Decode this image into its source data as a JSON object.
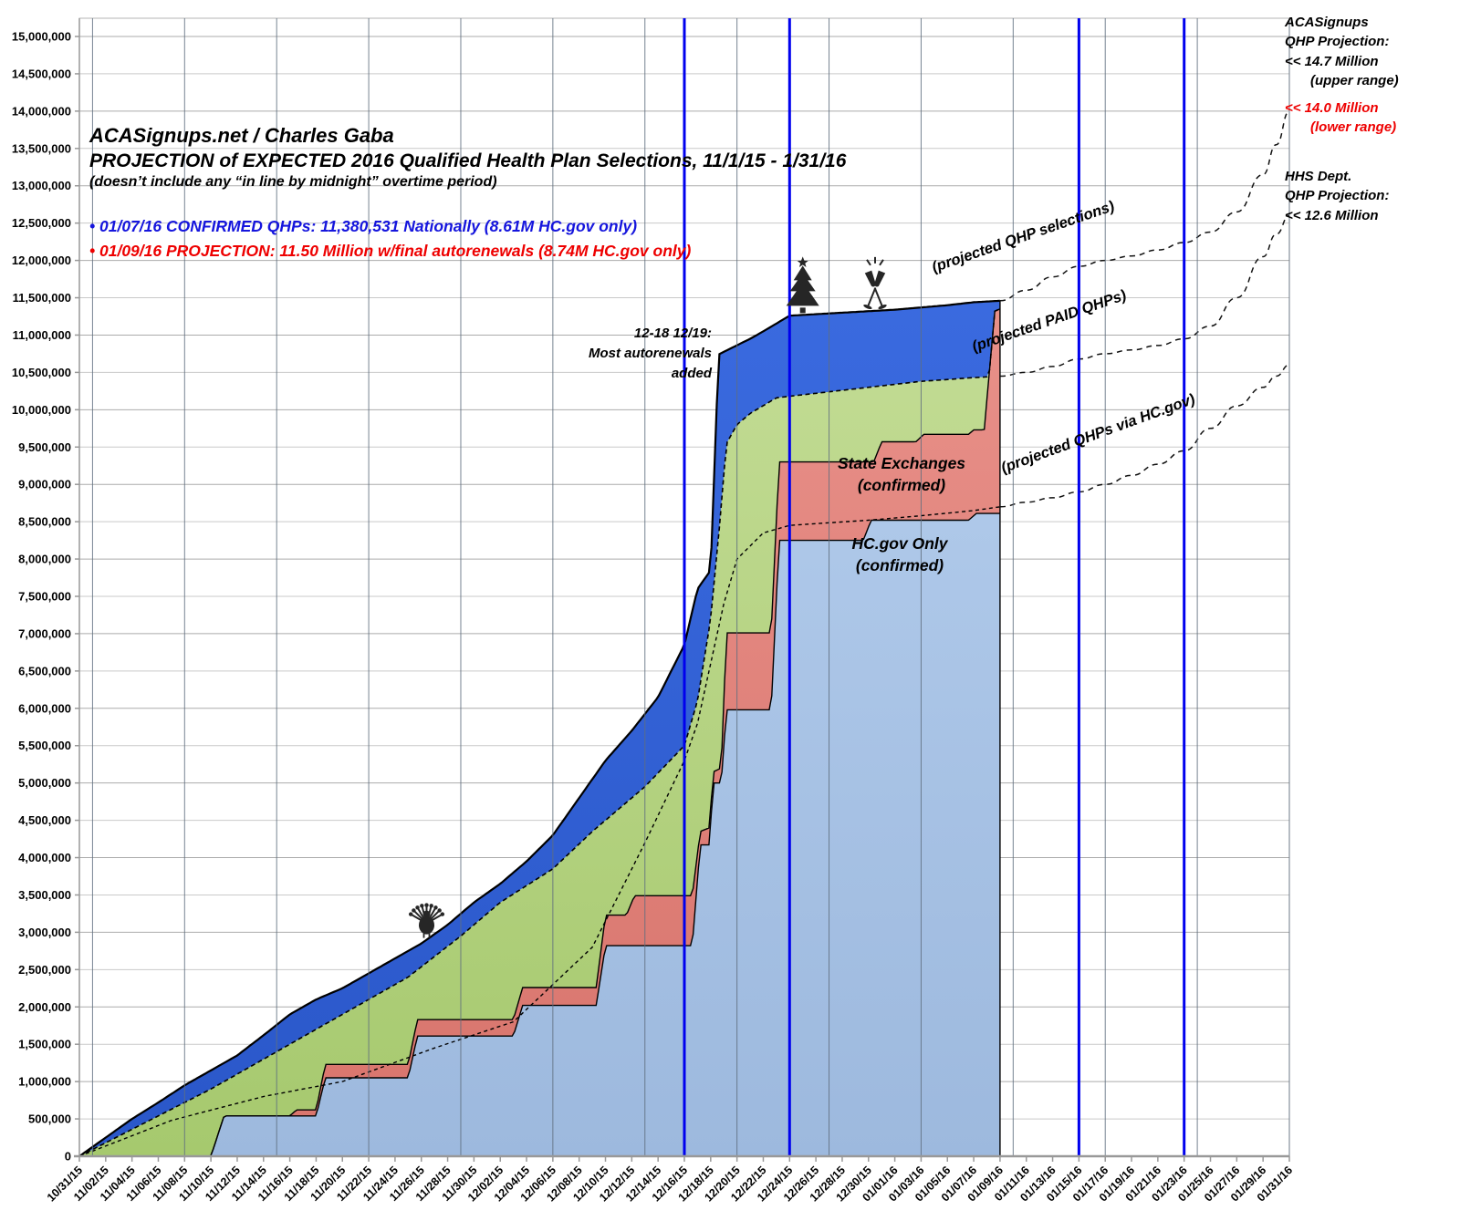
{
  "header": {
    "title_line1": "ACASignups.net / Charles Gaba",
    "title_line2": "PROJECTION of EXPECTED 2016 Qualified Health Plan Selections, 11/1/15 - 1/31/16",
    "title_line3": "(doesn’t include any “in line by midnight” overtime period)",
    "bullet_confirmed": "• 01/07/16 CONFIRMED QHPs: 11,380,531 Nationally (8.61M HC.gov only)",
    "bullet_projection": "• 01/09/16 PROJECTION: 11.50 Million w/final autorenewals (8.74M HC.gov only)"
  },
  "annotations": {
    "autorenewal_note_l1": "12-18 12/19:",
    "autorenewal_note_l2": "Most autorenewals",
    "autorenewal_note_l3": "added",
    "state_exchanges_l1": "State Exchanges",
    "state_exchanges_l2": "(confirmed)",
    "hcgov_only_l1": "HC.gov Only",
    "hcgov_only_l2": "(confirmed)",
    "curve_label_selections": "(projected QHP selections)",
    "curve_label_paid": "(projected PAID QHPs)",
    "curve_label_hcgov": "(projected QHPs via HC.gov)"
  },
  "right_labels": {
    "upper": {
      "l1": "ACASignups",
      "l2": "QHP Projection:",
      "l3": "<< 14.7 Million",
      "l4": "(upper range)"
    },
    "lower": {
      "l1": "<< 14.0 Million",
      "l2": "(lower range)"
    },
    "hhs": {
      "l1": "HHS Dept.",
      "l2": "QHP Projection:",
      "l3": "<< 12.6 Million"
    }
  },
  "colors": {
    "hcgov_area": "#aec8e9",
    "hcgov_area_dark": "#9db9de",
    "state_area": "#e89089",
    "state_area_dark": "#d8746c",
    "paid_gap_area": "#c3dc95",
    "paid_gap_area_dark": "#a6c96e",
    "unpaid_area": "#3a6adf",
    "unpaid_area_dark": "#2a57c9",
    "event_line_blue": "#0000ee",
    "sunday_gridline": "#5f6f7f",
    "gridline": "#c9c9c9",
    "gridline_major": "#ababab",
    "axis": "#999999",
    "outline": "#000000",
    "icon": "#262626",
    "text_blue": "#1515dd",
    "text_red": "#ee0000"
  },
  "chart_data": {
    "type": "area",
    "title": "PROJECTION of EXPECTED 2016 Qualified Health Plan Selections, 11/1/15 - 1/31/16",
    "value_units": "millions_of_qhp_selections",
    "grid": true,
    "x_axis": {
      "total_days": 92,
      "days_per_tick": 2,
      "labels": [
        "10/31/15",
        "11/02/15",
        "11/04/15",
        "11/06/15",
        "11/08/15",
        "11/10/15",
        "11/12/15",
        "11/14/15",
        "11/16/15",
        "11/18/15",
        "11/20/15",
        "11/22/15",
        "11/24/15",
        "11/26/15",
        "11/28/15",
        "11/30/15",
        "12/02/15",
        "12/04/15",
        "12/06/15",
        "12/08/15",
        "12/10/15",
        "12/12/15",
        "12/14/15",
        "12/16/15",
        "12/18/15",
        "12/20/15",
        "12/22/15",
        "12/24/15",
        "12/26/15",
        "12/28/15",
        "12/30/15",
        "01/01/16",
        "01/03/16",
        "01/05/16",
        "01/07/16",
        "01/09/16",
        "01/11/16",
        "01/13/16",
        "01/15/16",
        "01/17/16",
        "01/19/16",
        "01/21/16",
        "01/23/16",
        "01/25/16",
        "01/27/16",
        "01/29/16",
        "01/31/16"
      ]
    },
    "y_axis": {
      "min": 0,
      "max": 15000000,
      "step": 500000,
      "labels": [
        "0",
        "500,000",
        "1,000,000",
        "1,500,000",
        "2,000,000",
        "2,500,000",
        "3,000,000",
        "3,500,000",
        "4,000,000",
        "4,500,000",
        "5,000,000",
        "5,500,000",
        "6,000,000",
        "6,500,000",
        "7,000,000",
        "7,500,000",
        "8,000,000",
        "8,500,000",
        "9,000,000",
        "9,500,000",
        "10,000,000",
        "10,500,000",
        "11,000,000",
        "11,500,000",
        "12,000,000",
        "12,500,000",
        "13,000,000",
        "13,500,000",
        "14,000,000",
        "14,500,000",
        "15,000,000"
      ]
    },
    "event_lines_blue": [
      {
        "date": "12/16/15",
        "day": 46
      },
      {
        "date": "12/24/15",
        "day": 54
      },
      {
        "date": "01/15/16",
        "day": 76
      },
      {
        "date": "01/23/16",
        "day": 84
      }
    ],
    "sunday_gridline_days": [
      1,
      8,
      15,
      22,
      29,
      36,
      43,
      50,
      57,
      64,
      71,
      78,
      85,
      92
    ],
    "icons": [
      {
        "name": "turkey-icon",
        "day": 26.4,
        "meaning": "Thanksgiving"
      },
      {
        "name": "christmas-tree-icon",
        "day": 55.0,
        "meaning": "Christmas"
      },
      {
        "name": "champagne-glasses-icon",
        "day": 60.5,
        "meaning": "New Year"
      }
    ],
    "series": {
      "hcgov_confirmed_steps_millions": [
        [
          0,
          0
        ],
        [
          10,
          0
        ],
        [
          11,
          0.54
        ],
        [
          18,
          0.54
        ],
        [
          18.7,
          1.05
        ],
        [
          25,
          1.05
        ],
        [
          25.7,
          1.61
        ],
        [
          33,
          1.61
        ],
        [
          33.7,
          2.02
        ],
        [
          39.3,
          2.02
        ],
        [
          40,
          2.82
        ],
        [
          46.6,
          2.82
        ],
        [
          47.2,
          4.17
        ],
        [
          47.9,
          4.17
        ],
        [
          48.2,
          5.0
        ],
        [
          48.8,
          5.0
        ],
        [
          49.2,
          5.98
        ],
        [
          52.6,
          5.98
        ],
        [
          53.2,
          8.25
        ],
        [
          59.6,
          8.25
        ],
        [
          60.2,
          8.52
        ],
        [
          67.6,
          8.52
        ],
        [
          68.2,
          8.61
        ],
        [
          70,
          8.61
        ]
      ],
      "state_exchanges_top_steps_millions": [
        [
          0,
          0
        ],
        [
          10,
          0
        ],
        [
          11,
          0.54
        ],
        [
          16,
          0.54
        ],
        [
          16.5,
          0.62
        ],
        [
          18,
          0.62
        ],
        [
          18.7,
          1.23
        ],
        [
          25,
          1.23
        ],
        [
          25.7,
          1.83
        ],
        [
          33,
          1.83
        ],
        [
          33.7,
          2.26
        ],
        [
          39.3,
          2.26
        ],
        [
          40,
          3.23
        ],
        [
          41.6,
          3.23
        ],
        [
          42.2,
          3.49
        ],
        [
          46.6,
          3.49
        ],
        [
          47.2,
          4.35
        ],
        [
          47.9,
          4.4
        ],
        [
          48.2,
          5.15
        ],
        [
          48.8,
          5.2
        ],
        [
          49.2,
          7.01
        ],
        [
          52.6,
          7.01
        ],
        [
          53.2,
          9.3
        ],
        [
          60.4,
          9.3
        ],
        [
          61,
          9.57
        ],
        [
          63.6,
          9.57
        ],
        [
          64.2,
          9.67
        ],
        [
          67.6,
          9.67
        ],
        [
          68,
          9.73
        ],
        [
          68.8,
          9.73
        ],
        [
          69.6,
          11.32
        ],
        [
          70,
          11.35
        ]
      ],
      "projected_paid_qhps_millions": [
        [
          0,
          0
        ],
        [
          5,
          0.45
        ],
        [
          10,
          0.9
        ],
        [
          14,
          1.3
        ],
        [
          18,
          1.7
        ],
        [
          22,
          2.1
        ],
        [
          25,
          2.4
        ],
        [
          29,
          2.95
        ],
        [
          32,
          3.4
        ],
        [
          36,
          3.85
        ],
        [
          39,
          4.35
        ],
        [
          43,
          4.95
        ],
        [
          46,
          5.5
        ],
        [
          47,
          6.1
        ],
        [
          48,
          7.2
        ],
        [
          48.7,
          8.5
        ],
        [
          49.2,
          9.55
        ],
        [
          50,
          9.8
        ],
        [
          51,
          9.95
        ],
        [
          53,
          10.16
        ],
        [
          56,
          10.22
        ],
        [
          60,
          10.3
        ],
        [
          64,
          10.38
        ],
        [
          68,
          10.43
        ],
        [
          70,
          10.45
        ]
      ],
      "total_qhp_selections_millions": [
        [
          0,
          0
        ],
        [
          2,
          0.25
        ],
        [
          4,
          0.5
        ],
        [
          6,
          0.72
        ],
        [
          8,
          0.95
        ],
        [
          10,
          1.15
        ],
        [
          12,
          1.35
        ],
        [
          14,
          1.62
        ],
        [
          16,
          1.9
        ],
        [
          18,
          2.1
        ],
        [
          20,
          2.25
        ],
        [
          22,
          2.45
        ],
        [
          24,
          2.65
        ],
        [
          26,
          2.85
        ],
        [
          28,
          3.1
        ],
        [
          30,
          3.4
        ],
        [
          32,
          3.65
        ],
        [
          34,
          3.95
        ],
        [
          36,
          4.3
        ],
        [
          38,
          4.8
        ],
        [
          40,
          5.3
        ],
        [
          42,
          5.7
        ],
        [
          44,
          6.15
        ],
        [
          46,
          6.85
        ],
        [
          47,
          7.6
        ],
        [
          48,
          7.85
        ],
        [
          48.6,
          10.74
        ],
        [
          49.5,
          10.82
        ],
        [
          51,
          10.95
        ],
        [
          52,
          11.05
        ],
        [
          54,
          11.26
        ],
        [
          56,
          11.28
        ],
        [
          58,
          11.3
        ],
        [
          62,
          11.34
        ],
        [
          66,
          11.4
        ],
        [
          68,
          11.44
        ],
        [
          70,
          11.46
        ]
      ],
      "hcgov_projection_dashed_millions": [
        [
          0,
          0
        ],
        [
          7,
          0.48
        ],
        [
          14,
          0.8
        ],
        [
          20,
          1.0
        ],
        [
          27,
          1.45
        ],
        [
          33,
          1.8
        ],
        [
          36,
          2.3
        ],
        [
          39,
          2.8
        ],
        [
          43,
          4.2
        ],
        [
          46,
          5.3
        ],
        [
          47,
          5.8
        ],
        [
          48,
          6.6
        ],
        [
          49,
          7.4
        ],
        [
          50,
          8.0
        ],
        [
          52,
          8.35
        ],
        [
          54,
          8.45
        ],
        [
          60,
          8.52
        ],
        [
          64,
          8.58
        ],
        [
          68,
          8.65
        ],
        [
          70,
          8.7
        ]
      ],
      "projection_qhp_selections_millions": [
        [
          70,
          11.46
        ],
        [
          72,
          11.6
        ],
        [
          74,
          11.78
        ],
        [
          76,
          11.92
        ],
        [
          78,
          12.0
        ],
        [
          80,
          12.06
        ],
        [
          82,
          12.14
        ],
        [
          84,
          12.24
        ],
        [
          86,
          12.38
        ],
        [
          88,
          12.65
        ],
        [
          90,
          13.15
        ],
        [
          91,
          13.55
        ],
        [
          92,
          14.0
        ]
      ],
      "projection_paid_qhps_millions": [
        [
          70,
          10.45
        ],
        [
          72,
          10.5
        ],
        [
          74,
          10.58
        ],
        [
          76,
          10.68
        ],
        [
          78,
          10.75
        ],
        [
          80,
          10.8
        ],
        [
          82,
          10.86
        ],
        [
          84,
          10.95
        ],
        [
          86,
          11.12
        ],
        [
          88,
          11.5
        ],
        [
          90,
          12.05
        ],
        [
          91,
          12.35
        ],
        [
          92,
          12.6
        ]
      ],
      "projection_hcgov_millions": [
        [
          70,
          8.7
        ],
        [
          72,
          8.76
        ],
        [
          74,
          8.82
        ],
        [
          76,
          8.9
        ],
        [
          78,
          9.0
        ],
        [
          80,
          9.12
        ],
        [
          82,
          9.27
        ],
        [
          84,
          9.45
        ],
        [
          86,
          9.75
        ],
        [
          88,
          10.05
        ],
        [
          90,
          10.3
        ],
        [
          91,
          10.45
        ],
        [
          92,
          10.6
        ]
      ]
    },
    "projection_endpoints": {
      "acasignups_upper_range": 14700000,
      "acasignups_lower_range": 14000000,
      "hhs_projection": 12600000,
      "hcgov_projection_end": 10600000
    }
  }
}
